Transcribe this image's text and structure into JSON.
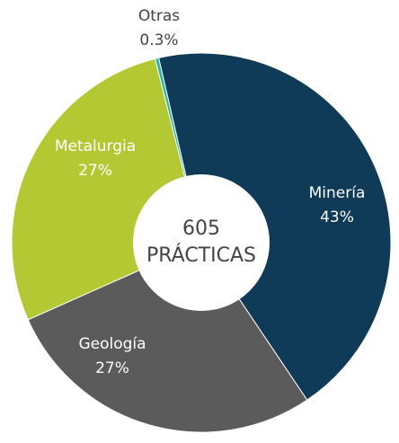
{
  "chart_data": {
    "type": "donut",
    "categories": [
      "Minería",
      "Geología",
      "Metalurgia",
      "Otras"
    ],
    "values": [
      43,
      27,
      27,
      0.3
    ],
    "value_labels": [
      "43%",
      "27%",
      "27%",
      "0.3%"
    ],
    "colors": [
      "#0f3a58",
      "#5b5b5b",
      "#b4c834",
      "#2bb3a3"
    ],
    "center_value": 605,
    "center_label": "PRÁCTICAS"
  }
}
